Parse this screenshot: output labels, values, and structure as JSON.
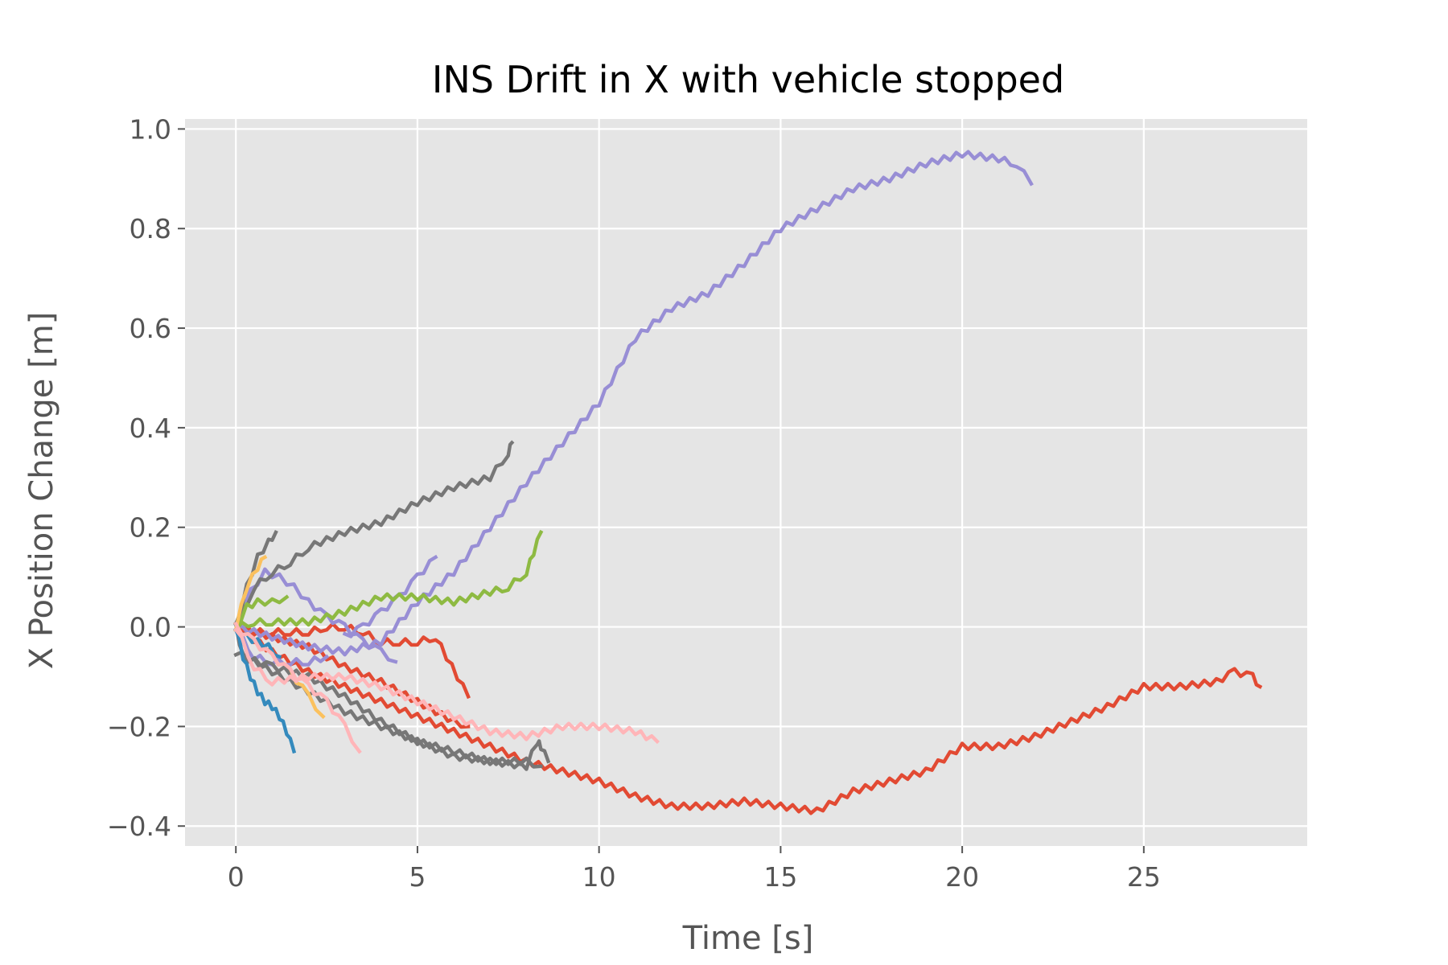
{
  "chart_data": {
    "type": "line",
    "title": "INS Drift in X with vehicle stopped",
    "xlabel": "Time [s]",
    "ylabel": "X Position Change [m]",
    "xlim": [
      -1.4,
      29.5
    ],
    "ylim": [
      -0.44,
      1.02
    ],
    "xticks": [
      0,
      5,
      10,
      15,
      20,
      25
    ],
    "yticks": [
      -0.4,
      -0.2,
      0.0,
      0.2,
      0.4,
      0.6,
      0.8,
      1.0
    ],
    "xtick_labels": [
      "0",
      "5",
      "10",
      "15",
      "20",
      "25"
    ],
    "ytick_labels": [
      "−0.4",
      "−0.2",
      "0.0",
      "0.2",
      "0.4",
      "0.6",
      "0.8",
      "1.0"
    ],
    "grid": true,
    "background": "#e5e5e5",
    "colors": {
      "red": "#E24A33",
      "blue": "#348ABD",
      "purple": "#988ED5",
      "gray": "#777777",
      "yellow": "#FBC15E",
      "green": "#8EBA42",
      "pink": "#FFB5B8"
    },
    "series": [
      {
        "color_key": "red",
        "x": [
          0,
          1,
          2,
          3,
          4,
          5,
          6,
          7,
          8,
          9,
          10,
          11,
          12,
          13,
          14,
          15,
          16,
          17,
          18,
          19,
          20,
          21,
          22,
          23,
          24,
          25,
          26,
          27,
          27.5,
          28,
          28.2
        ],
        "y": [
          0,
          -0.05,
          -0.09,
          -0.12,
          -0.15,
          -0.18,
          -0.21,
          -0.24,
          -0.27,
          -0.29,
          -0.31,
          -0.34,
          -0.36,
          -0.36,
          -0.35,
          -0.36,
          -0.37,
          -0.33,
          -0.31,
          -0.29,
          -0.24,
          -0.24,
          -0.22,
          -0.19,
          -0.16,
          -0.12,
          -0.12,
          -0.11,
          -0.09,
          -0.1,
          -0.12
        ]
      },
      {
        "color_key": "red",
        "x": [
          0,
          0.5,
          1,
          1.5,
          2,
          2.5,
          3,
          3.5,
          4,
          4.5,
          5,
          5.5,
          5.8,
          6.1,
          6.4
        ],
        "y": [
          0,
          -0.01,
          -0.01,
          -0.01,
          -0.01,
          0.0,
          0.0,
          -0.01,
          -0.03,
          -0.03,
          -0.03,
          -0.02,
          -0.06,
          -0.1,
          -0.14
        ]
      },
      {
        "color_key": "red",
        "x": [
          0,
          1,
          2,
          3,
          4,
          5,
          6,
          6.4
        ],
        "y": [
          0,
          -0.02,
          -0.04,
          -0.08,
          -0.11,
          -0.15,
          -0.19,
          -0.2
        ]
      },
      {
        "color_key": "purple",
        "x": [
          0,
          1,
          2,
          3,
          4,
          5,
          6,
          7,
          8,
          9,
          10,
          11,
          12,
          13,
          14,
          15,
          16,
          17,
          18,
          19,
          20,
          21,
          21.5,
          21.9
        ],
        "y": [
          0,
          -0.02,
          -0.04,
          -0.05,
          -0.03,
          0.05,
          0.11,
          0.2,
          0.29,
          0.37,
          0.45,
          0.58,
          0.64,
          0.67,
          0.73,
          0.8,
          0.84,
          0.88,
          0.9,
          0.93,
          0.95,
          0.94,
          0.93,
          0.89
        ]
      },
      {
        "color_key": "purple",
        "x": [
          0,
          0.4,
          0.8,
          1.2,
          1.6,
          2,
          2.5,
          3,
          3.5,
          4,
          4.4
        ],
        "y": [
          0,
          0.07,
          0.11,
          0.1,
          0.08,
          0.05,
          0.02,
          0.0,
          -0.03,
          -0.05,
          -0.07
        ]
      },
      {
        "color_key": "purple",
        "x": [
          0,
          0.5,
          1,
          1.5,
          2,
          2.5
        ],
        "y": [
          0,
          -0.06,
          -0.07,
          -0.07,
          -0.07,
          -0.06
        ]
      },
      {
        "color_key": "purple",
        "x": [
          3,
          3.5,
          4,
          4.5,
          5,
          5.5
        ],
        "y": [
          -0.02,
          0.0,
          0.03,
          0.06,
          0.1,
          0.14
        ]
      },
      {
        "color_key": "gray",
        "x": [
          0,
          0.5,
          1,
          1.5,
          2,
          3,
          4,
          5,
          6,
          7,
          7.5,
          7.6
        ],
        "y": [
          0,
          0.08,
          0.11,
          0.13,
          0.16,
          0.19,
          0.21,
          0.25,
          0.28,
          0.3,
          0.35,
          0.37
        ]
      },
      {
        "color_key": "gray",
        "x": [
          0,
          0.3,
          0.6,
          0.9,
          1.1
        ],
        "y": [
          0,
          0.08,
          0.14,
          0.17,
          0.19
        ]
      },
      {
        "color_key": "gray",
        "x": [
          0,
          1,
          2,
          3,
          4,
          5,
          6,
          7,
          8,
          8.3,
          8.4,
          8.6
        ],
        "y": [
          -0.05,
          -0.09,
          -0.13,
          -0.17,
          -0.2,
          -0.23,
          -0.25,
          -0.27,
          -0.28,
          -0.23,
          -0.24,
          -0.27
        ]
      },
      {
        "color_key": "gray",
        "x": [
          0,
          0.2,
          1,
          2,
          3,
          4,
          5,
          6,
          7,
          8,
          8.4
        ],
        "y": [
          0,
          -0.06,
          -0.08,
          -0.1,
          -0.14,
          -0.19,
          -0.23,
          -0.26,
          -0.27,
          -0.27,
          -0.28
        ]
      },
      {
        "color_key": "green",
        "x": [
          0,
          0.5,
          1,
          2,
          3,
          4,
          5,
          6,
          7,
          7.5,
          8,
          8.2,
          8.4
        ],
        "y": [
          0,
          0.01,
          0.01,
          0.01,
          0.03,
          0.06,
          0.06,
          0.05,
          0.07,
          0.08,
          0.11,
          0.15,
          0.19
        ]
      },
      {
        "color_key": "green",
        "x": [
          0,
          0.3,
          0.6,
          1,
          1.4
        ],
        "y": [
          0,
          0.04,
          0.05,
          0.05,
          0.06
        ]
      },
      {
        "color_key": "blue",
        "x": [
          0,
          0.2,
          0.4,
          0.6,
          0.8,
          1,
          1.2,
          1.4,
          1.6
        ],
        "y": [
          0,
          -0.06,
          -0.1,
          -0.13,
          -0.15,
          -0.16,
          -0.18,
          -0.21,
          -0.25
        ]
      },
      {
        "color_key": "blue",
        "x": [
          0,
          0.3,
          0.6,
          0.9,
          1.2
        ],
        "y": [
          0,
          -0.02,
          -0.03,
          -0.04,
          -0.06
        ]
      },
      {
        "color_key": "yellow",
        "x": [
          0,
          0.3,
          0.6,
          0.8
        ],
        "y": [
          0,
          0.08,
          0.12,
          0.14
        ]
      },
      {
        "color_key": "yellow",
        "x": [
          0,
          0.5,
          1,
          1.5,
          2,
          2.4
        ],
        "y": [
          0,
          -0.03,
          -0.06,
          -0.09,
          -0.14,
          -0.18
        ]
      },
      {
        "color_key": "pink",
        "x": [
          0,
          0.5,
          1,
          2,
          3,
          4,
          5,
          6,
          7,
          8,
          9,
          10,
          11,
          11.6
        ],
        "y": [
          0,
          -0.08,
          -0.11,
          -0.1,
          -0.1,
          -0.12,
          -0.15,
          -0.18,
          -0.21,
          -0.22,
          -0.2,
          -0.2,
          -0.21,
          -0.23
        ]
      },
      {
        "color_key": "pink",
        "x": [
          0,
          0.5,
          1,
          1.5,
          2,
          2.5,
          3,
          3.4
        ],
        "y": [
          0,
          -0.03,
          -0.06,
          -0.09,
          -0.12,
          -0.15,
          -0.2,
          -0.25
        ]
      }
    ]
  }
}
